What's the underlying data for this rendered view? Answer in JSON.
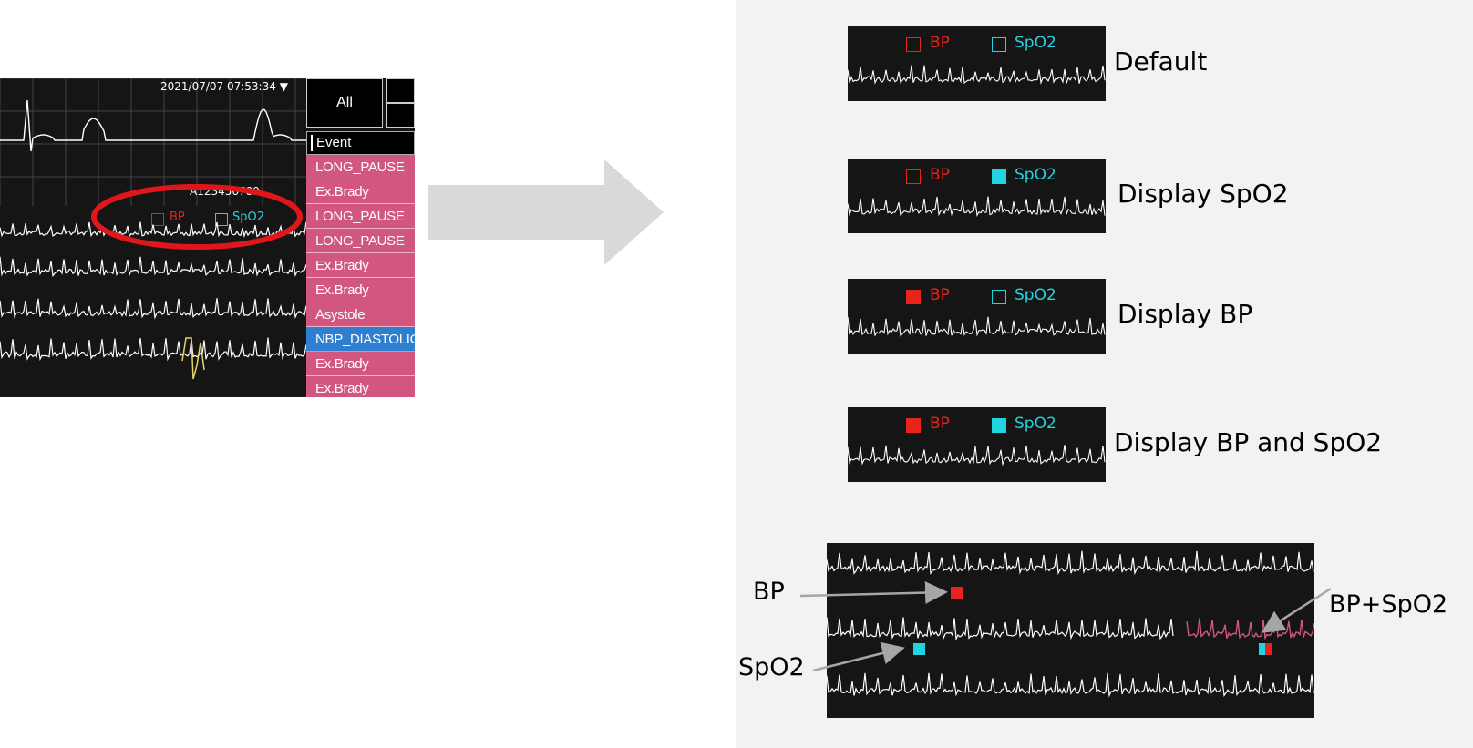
{
  "monitor": {
    "timestamp": "2021/07/07 07:53:34 ▼",
    "all_button": "All",
    "patient_id": "A123456789",
    "legend": {
      "bp": "BP",
      "spo2": "SpO2"
    },
    "event_list": {
      "header": "Event",
      "items": [
        "LONG_PAUSE",
        "Ex.Brady",
        "LONG_PAUSE",
        "LONG_PAUSE",
        "Ex.Brady",
        "Ex.Brady",
        "Asystole",
        "NBP_DIASTOLIC",
        "Ex.Brady",
        "Ex.Brady"
      ],
      "selected_index": 7
    }
  },
  "variants": [
    {
      "caption": "Default",
      "bp_checked": false,
      "spo2_checked": false,
      "bp": "BP",
      "spo2": "SpO2"
    },
    {
      "caption": "Display SpO2",
      "bp_checked": false,
      "spo2_checked": true,
      "bp": "BP",
      "spo2": "SpO2"
    },
    {
      "caption": "Display BP",
      "bp_checked": true,
      "spo2_checked": false,
      "bp": "BP",
      "spo2": "SpO2"
    },
    {
      "caption": "Display BP and SpO2",
      "bp_checked": true,
      "spo2_checked": true,
      "bp": "BP",
      "spo2": "SpO2"
    }
  ],
  "example": {
    "bp_label": "BP",
    "spo2_label": "SpO2",
    "both_label": "BP+SpO2"
  },
  "colors": {
    "bp": "#e8221c",
    "spo2": "#22d4e0",
    "selected": "#2f7fd1",
    "event_bg": "#d2577f",
    "annotation": "#e0161b",
    "arrow": "#d9d9d9"
  }
}
